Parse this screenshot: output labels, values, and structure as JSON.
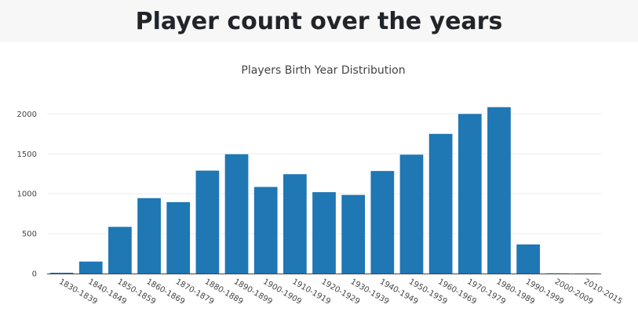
{
  "page": {
    "heading": "Player count over the years"
  },
  "colors": {
    "bar": "#1f77b4",
    "grid": "#eeeeee",
    "axis": "#444444",
    "header_bg": "#f7f7f8"
  },
  "chart_data": {
    "type": "bar",
    "title": "Players Birth Year Distribution",
    "xlabel": "",
    "ylabel": "",
    "ylim": [
      0,
      2200
    ],
    "yticks": [
      0,
      500,
      1000,
      1500,
      2000
    ],
    "grid": true,
    "categories": [
      "1830-1839",
      "1840-1849",
      "1850-1859",
      "1860-1869",
      "1870-1879",
      "1880-1889",
      "1890-1899",
      "1900-1909",
      "1910-1919",
      "1920-1929",
      "1930-1939",
      "1940-1949",
      "1950-1959",
      "1960-1969",
      "1970-1979",
      "1980-1989",
      "1990-1999",
      "2000-2009",
      "2010-2015"
    ],
    "values": [
      10,
      150,
      585,
      945,
      895,
      1290,
      1495,
      1085,
      1245,
      1020,
      985,
      1285,
      1490,
      1750,
      2000,
      2085,
      365,
      3,
      2
    ]
  }
}
